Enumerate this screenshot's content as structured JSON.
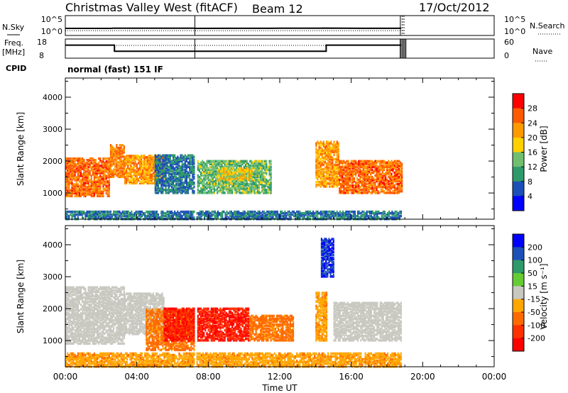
{
  "title": {
    "station": "Christmas Valley West (fitACF)",
    "beam": "Beam 12",
    "date": "17/Oct/2012"
  },
  "params": {
    "nsky_label": "N.Sky",
    "nsearch_label": "N.Search",
    "freq_label_line1": "Freq.",
    "freq_label_line2": "[MHz]",
    "nave_label": "Nave",
    "cpid_label": "CPID",
    "cpid_value": "normal (fast) 151 IF",
    "noise_ticks_left": [
      "10^5",
      "10^0"
    ],
    "noise_ticks_right": [
      "10^5",
      "10^0"
    ],
    "freq_ticks": [
      "18",
      "8"
    ],
    "nave_ticks": [
      "60",
      "0"
    ]
  },
  "axes": {
    "xlabel": "Time UT",
    "x_ticks": [
      "00:00",
      "04:00",
      "08:00",
      "12:00",
      "16:00",
      "20:00",
      "00:00"
    ],
    "ylabel": "Slant Range [km]",
    "y_ticks": [
      "4000",
      "3000",
      "2000",
      "1000"
    ]
  },
  "colorbars": {
    "power": {
      "label": "Power [dB]",
      "ticks": [
        "28",
        "24",
        "20",
        "16",
        "12",
        "8",
        "4"
      ],
      "colors": [
        "#ff0000",
        "#ff5a00",
        "#ff9900",
        "#ffd000",
        "#6fbf6f",
        "#2e9a6a",
        "#1c4fb8",
        "#0000ff"
      ]
    },
    "velocity": {
      "label": "Velocity [m s⁻¹]",
      "ticks": [
        "200",
        "100",
        "50",
        "15",
        "-15",
        "-50",
        "-100",
        "-200"
      ],
      "colors": [
        "#0000ff",
        "#1c4fb8",
        "#2e9a6a",
        "#66cc33",
        "#c8c8c0",
        "#ffa600",
        "#ff6a00",
        "#ff3000",
        "#ff0000"
      ]
    }
  },
  "chart_data": [
    {
      "type": "line",
      "name": "noise",
      "x_range_hours": [
        0,
        24
      ],
      "series": [
        {
          "name": "N.Sky",
          "x": [
            0,
            2,
            2.6,
            2.65,
            5,
            7.2,
            7.3,
            9,
            12,
            13,
            14.3,
            14.4,
            15.5,
            17,
            18.5,
            18.8
          ],
          "values": [
            10,
            10,
            10,
            12,
            11,
            11,
            10,
            10.5,
            11,
            11,
            12,
            12.5,
            11,
            10.5,
            10.5,
            11
          ]
        },
        {
          "name": "N.Search",
          "x": [
            0,
            3,
            6,
            9,
            12,
            15,
            18,
            18.8
          ],
          "values": [
            9,
            9,
            9,
            9,
            9,
            9,
            9,
            9
          ]
        }
      ],
      "ylim": [
        0,
        100000
      ]
    },
    {
      "type": "line",
      "name": "frequency-nave",
      "series": [
        {
          "name": "Freq.",
          "x": [
            0,
            2.75,
            2.75,
            7.2,
            7.3,
            14.6,
            14.6,
            18.8
          ],
          "values": [
            14.8,
            14.8,
            11.6,
            11.6,
            11.6,
            11.6,
            14.8,
            14.8
          ]
        },
        {
          "name": "Nave",
          "x": [
            0,
            18.8
          ],
          "values": [
            40,
            40
          ]
        }
      ],
      "freq_range": [
        8,
        18
      ],
      "nave_range": [
        0,
        60
      ]
    },
    {
      "type": "heatmap",
      "name": "power",
      "x_range_hours": [
        0,
        24
      ],
      "y_range_km": [
        180,
        4600
      ],
      "data_end_hour": 18.8,
      "regions": [
        {
          "t0": 0,
          "t1": 2.5,
          "r0": 900,
          "r1": 2100,
          "value": 25
        },
        {
          "t0": 2.5,
          "t1": 3.3,
          "r0": 1500,
          "r1": 2500,
          "value": 24
        },
        {
          "t0": 3.3,
          "t1": 5.5,
          "r0": 1300,
          "r1": 2200,
          "value": 22
        },
        {
          "t0": 5.0,
          "t1": 7.2,
          "r0": 1000,
          "r1": 2200,
          "value": 8
        },
        {
          "t0": 7.3,
          "t1": 11.5,
          "r0": 1000,
          "r1": 2000,
          "value": 13
        },
        {
          "t0": 8.5,
          "t1": 10.5,
          "r0": 1400,
          "r1": 1800,
          "value": 18
        },
        {
          "t0": 14.0,
          "t1": 15.3,
          "r0": 1200,
          "r1": 2600,
          "value": 22
        },
        {
          "t0": 15.3,
          "t1": 18.8,
          "r0": 1000,
          "r1": 2000,
          "value": 25
        },
        {
          "t0": 0,
          "t1": 18.8,
          "r0": 180,
          "r1": 450,
          "value": 8
        }
      ]
    },
    {
      "type": "heatmap",
      "name": "velocity",
      "x_range_hours": [
        0,
        24
      ],
      "y_range_km": [
        180,
        4600
      ],
      "data_end_hour": 18.8,
      "regions": [
        {
          "t0": 0,
          "t1": 3.3,
          "r0": 900,
          "r1": 2700,
          "value": 0
        },
        {
          "t0": 3.3,
          "t1": 5.5,
          "r0": 1200,
          "r1": 2500,
          "value": 0
        },
        {
          "t0": 4.5,
          "t1": 7.2,
          "r0": 700,
          "r1": 2000,
          "value": -60
        },
        {
          "t0": 5.5,
          "t1": 7.2,
          "r0": 1000,
          "r1": 2000,
          "value": -200
        },
        {
          "t0": 7.3,
          "t1": 10.3,
          "r0": 1000,
          "r1": 2000,
          "value": -200
        },
        {
          "t0": 10.3,
          "t1": 12.8,
          "r0": 1000,
          "r1": 1800,
          "value": -60
        },
        {
          "t0": 14.0,
          "t1": 14.6,
          "r0": 1000,
          "r1": 2500,
          "value": -40
        },
        {
          "t0": 14.3,
          "t1": 15.0,
          "r0": 3000,
          "r1": 4200,
          "value": 200
        },
        {
          "t0": 15.0,
          "t1": 18.8,
          "r0": 1000,
          "r1": 2200,
          "value": 0
        },
        {
          "t0": 0,
          "t1": 18.8,
          "r0": 180,
          "r1": 600,
          "value": -40
        }
      ]
    }
  ]
}
